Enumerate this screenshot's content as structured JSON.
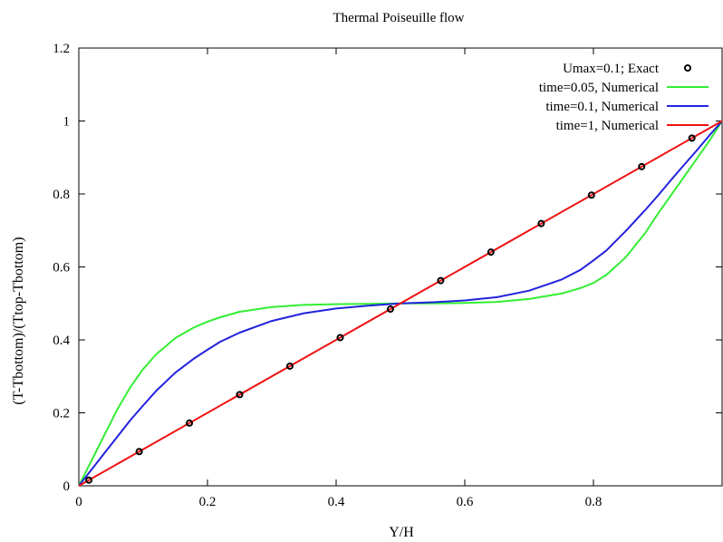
{
  "chart_data": {
    "type": "line",
    "title": "Thermal Poiseuille flow",
    "xlabel": "Y/H",
    "ylabel": "(T-Tbottom)/(Ttop-Tbottom)",
    "xlim": [
      0,
      1
    ],
    "ylim": [
      0,
      1.2
    ],
    "xticks": [
      0,
      0.2,
      0.4,
      0.6,
      0.8
    ],
    "xtick_labels": [
      "0",
      "0.2",
      "0.4",
      "0.6",
      "0.8"
    ],
    "yticks": [
      0,
      0.2,
      0.4,
      0.6,
      0.8,
      1.0,
      1.2
    ],
    "ytick_labels": [
      "0",
      "0.2",
      "0.4",
      "0.6",
      "0.8",
      "1",
      "1.2"
    ],
    "grid": false,
    "legend_position": "top-right",
    "series": [
      {
        "name": "Umax=0.1; Exact",
        "kind": "points",
        "color": "#000000",
        "x": [
          0.0156,
          0.0938,
          0.1719,
          0.25,
          0.3281,
          0.4063,
          0.4844,
          0.5625,
          0.6406,
          0.7188,
          0.7969,
          0.875,
          0.9531
        ],
        "y": [
          0.0156,
          0.0938,
          0.1719,
          0.25,
          0.3281,
          0.4063,
          0.4844,
          0.5625,
          0.6406,
          0.7188,
          0.7969,
          0.875,
          0.9531
        ]
      },
      {
        "name": "time=0.05, Numerical",
        "kind": "line",
        "color": "#33ee33",
        "x": [
          0,
          0.02,
          0.04,
          0.06,
          0.08,
          0.1,
          0.12,
          0.15,
          0.18,
          0.2,
          0.22,
          0.25,
          0.3,
          0.35,
          0.4,
          0.45,
          0.5,
          0.55,
          0.6,
          0.65,
          0.7,
          0.75,
          0.78,
          0.8,
          0.82,
          0.85,
          0.88,
          0.9,
          0.92,
          0.94,
          0.96,
          0.98,
          1.0
        ],
        "y": [
          0,
          0.07,
          0.14,
          0.21,
          0.27,
          0.32,
          0.36,
          0.405,
          0.435,
          0.45,
          0.462,
          0.477,
          0.49,
          0.496,
          0.498,
          0.499,
          0.5,
          0.5,
          0.501,
          0.504,
          0.512,
          0.527,
          0.542,
          0.556,
          0.578,
          0.626,
          0.692,
          0.745,
          0.795,
          0.845,
          0.895,
          0.945,
          1.0
        ]
      },
      {
        "name": "time=0.1, Numerical",
        "kind": "line",
        "color": "#2222dd",
        "x": [
          0,
          0.02,
          0.04,
          0.06,
          0.08,
          0.1,
          0.12,
          0.15,
          0.18,
          0.2,
          0.22,
          0.25,
          0.3,
          0.35,
          0.4,
          0.45,
          0.5,
          0.55,
          0.6,
          0.65,
          0.7,
          0.75,
          0.78,
          0.8,
          0.82,
          0.85,
          0.88,
          0.9,
          0.92,
          0.94,
          0.96,
          0.98,
          1.0
        ],
        "y": [
          0,
          0.045,
          0.09,
          0.135,
          0.18,
          0.22,
          0.26,
          0.31,
          0.35,
          0.373,
          0.395,
          0.42,
          0.452,
          0.473,
          0.486,
          0.494,
          0.5,
          0.503,
          0.508,
          0.517,
          0.535,
          0.565,
          0.592,
          0.618,
          0.645,
          0.698,
          0.755,
          0.795,
          0.837,
          0.878,
          0.918,
          0.96,
          1.0
        ]
      },
      {
        "name": "time=1, Numerical",
        "kind": "line",
        "color": "#ee1111",
        "x": [
          0,
          1.0
        ],
        "y": [
          0,
          1.0
        ]
      }
    ]
  }
}
